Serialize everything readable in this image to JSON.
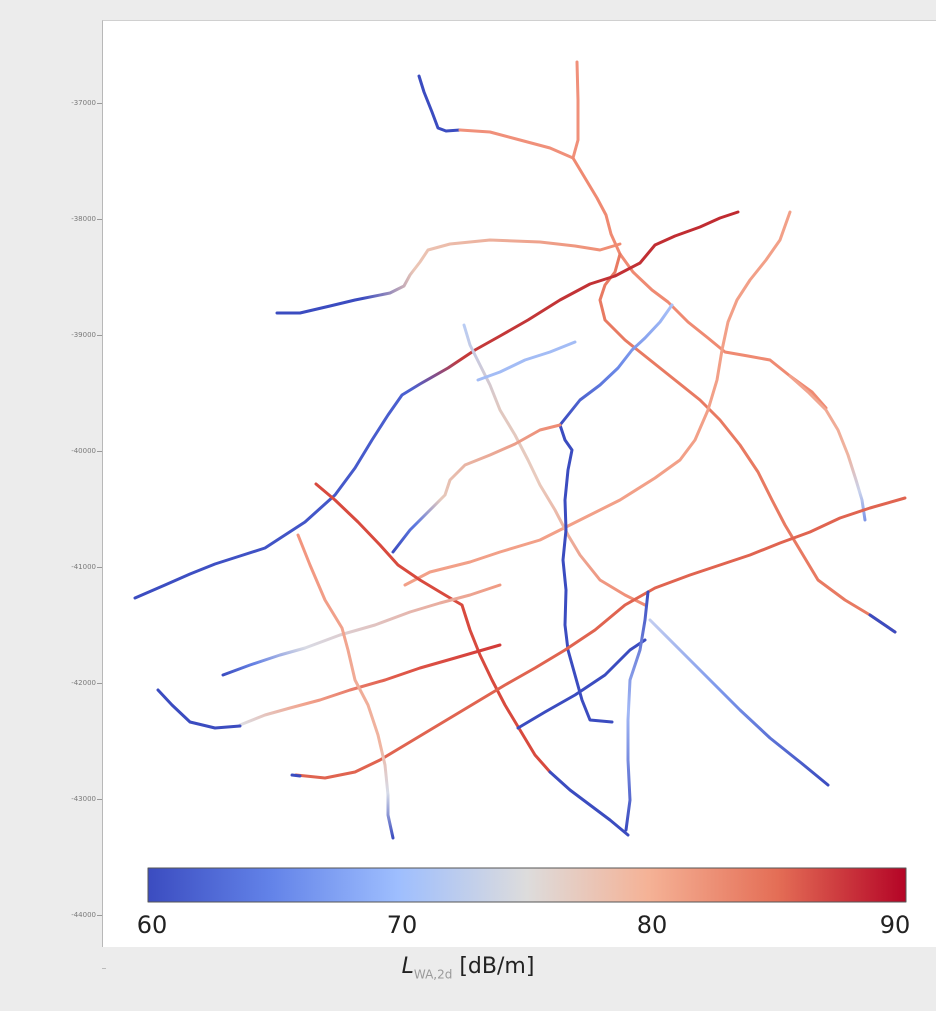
{
  "y_axis": {
    "ticks": [
      "-37000",
      "-38000",
      "-39000",
      "-40000",
      "-41000",
      "-42000",
      "-43000",
      "-44000"
    ]
  },
  "colorbar": {
    "ticks": [
      "60",
      "70",
      "80",
      "90"
    ],
    "label_symbol": "L",
    "label_subscript": "WA,2d",
    "label_unit": " [dB/m]",
    "colormap": "coolwarm",
    "range": [
      60,
      90
    ],
    "gradient_colors": [
      "#3b4cc0",
      "#6f92f3",
      "#aac7fd",
      "#dddcdc",
      "#f7b89c",
      "#e7745b",
      "#b40426"
    ]
  },
  "map": {
    "content": "road network colored by sound power level",
    "colors": {
      "blue": "#3b4cc0",
      "light_blue": "#8db0fe",
      "pale": "#d6dce6",
      "salmon": "#f2907a",
      "red": "#d44e41",
      "dark_red": "#b40426"
    }
  }
}
